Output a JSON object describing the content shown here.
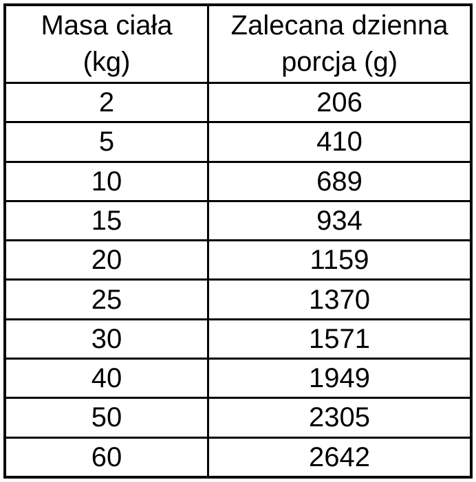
{
  "colors": {
    "background": "#ffffff",
    "border": "#000000",
    "text": "#000000"
  },
  "table": {
    "header": [
      {
        "line1": "Masa ciała",
        "line2": "(kg)"
      },
      {
        "line1": "Zalecana dzienna",
        "line2": "porcja (g)"
      }
    ],
    "rows": [
      {
        "weight": "2",
        "portion": "206"
      },
      {
        "weight": "5",
        "portion": "410"
      },
      {
        "weight": "10",
        "portion": "689"
      },
      {
        "weight": "15",
        "portion": "934"
      },
      {
        "weight": "20",
        "portion": "1159"
      },
      {
        "weight": "25",
        "portion": "1370"
      },
      {
        "weight": "30",
        "portion": "1571"
      },
      {
        "weight": "40",
        "portion": "1949"
      },
      {
        "weight": "50",
        "portion": "2305"
      },
      {
        "weight": "60",
        "portion": "2642"
      }
    ]
  },
  "chart_data": {
    "type": "table",
    "title": "",
    "columns": [
      "Masa ciała (kg)",
      "Zalecana dzienna porcja (g)"
    ],
    "rows": [
      [
        2,
        206
      ],
      [
        5,
        410
      ],
      [
        10,
        689
      ],
      [
        15,
        934
      ],
      [
        20,
        1159
      ],
      [
        25,
        1370
      ],
      [
        30,
        1571
      ],
      [
        40,
        1949
      ],
      [
        50,
        2305
      ],
      [
        60,
        2642
      ]
    ]
  }
}
